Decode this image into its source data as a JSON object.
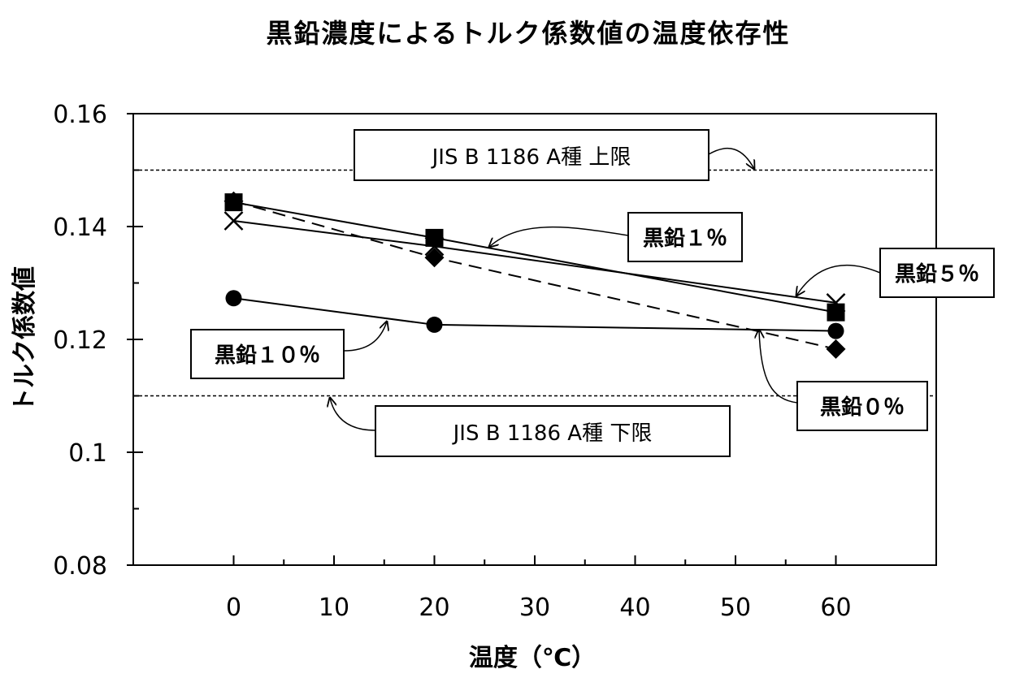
{
  "chart_data": {
    "type": "line",
    "title": "黒鉛濃度によるトルク係数値の温度依存性",
    "xlabel": "温度（℃）",
    "ylabel": "トルク係数値",
    "xlim": [
      -10,
      70
    ],
    "ylim": [
      0.08,
      0.16
    ],
    "x_ticks": [
      "0",
      "10",
      "20",
      "30",
      "40",
      "50",
      "60"
    ],
    "y_ticks": [
      "0.08",
      "0.1",
      "0.12",
      "0.14",
      "0.16"
    ],
    "grid": false,
    "series": [
      {
        "name": "黒鉛０％",
        "marker": "diamond",
        "dash": true,
        "x": [
          0,
          20,
          60
        ],
        "y": [
          0.1445,
          0.1345,
          0.1183
        ]
      },
      {
        "name": "黒鉛１％",
        "marker": "square",
        "dash": false,
        "x": [
          0,
          20,
          60
        ],
        "y": [
          0.1443,
          0.138,
          0.1248
        ]
      },
      {
        "name": "黒鉛５％",
        "marker": "x",
        "dash": false,
        "x": [
          0,
          20,
          60
        ],
        "y": [
          0.141,
          0.1365,
          0.1265
        ]
      },
      {
        "name": "黒鉛１０％",
        "marker": "circle",
        "dash": false,
        "x": [
          0,
          20,
          60
        ],
        "y": [
          0.1273,
          0.1226,
          0.1215
        ]
      }
    ],
    "reference_lines": [
      {
        "label": "JIS B 1186 A種 上限",
        "y": 0.15
      },
      {
        "label": "JIS B 1186 A種 下限",
        "y": 0.11
      }
    ]
  }
}
